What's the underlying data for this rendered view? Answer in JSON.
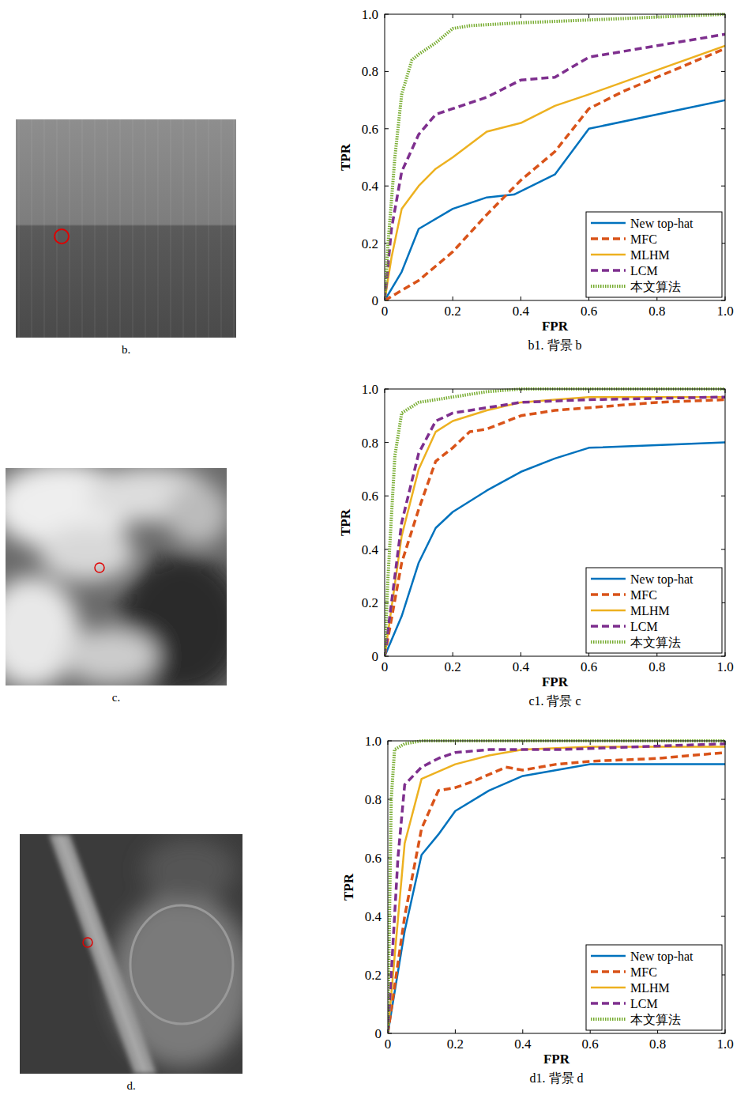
{
  "images": [
    {
      "caption": "b."
    },
    {
      "caption": "c."
    },
    {
      "caption": "d."
    }
  ],
  "chart_data": [
    {
      "type": "line",
      "title": "b1. 背景 b",
      "xlabel": "FPR",
      "ylabel": "TPR",
      "xlim": [
        0,
        1
      ],
      "ylim": [
        0,
        1
      ],
      "xticks": [
        0,
        0.2,
        0.4,
        0.6,
        0.8,
        {
          "value": 1,
          "label": "1.0"
        }
      ],
      "yticks": [
        0,
        0.2,
        0.4,
        0.6,
        0.8,
        {
          "value": 1,
          "label": "1.0"
        }
      ],
      "grid": false,
      "legend": "lower right",
      "series": [
        {
          "name": "New top-hat",
          "color": "#0072bd",
          "line_style": "solid",
          "x": [
            0,
            0.05,
            0.1,
            0.2,
            0.3,
            0.38,
            0.5,
            0.6,
            1.0
          ],
          "values": [
            0,
            0.1,
            0.25,
            0.32,
            0.36,
            0.37,
            0.44,
            0.6,
            0.7
          ]
        },
        {
          "name": "MFC",
          "color": "#d95319",
          "line_style": "dashed",
          "x": [
            0,
            0.1,
            0.2,
            0.3,
            0.4,
            0.5,
            0.6,
            0.7,
            1.0
          ],
          "values": [
            0,
            0.07,
            0.17,
            0.3,
            0.42,
            0.52,
            0.67,
            0.73,
            0.88
          ]
        },
        {
          "name": "MLHM",
          "color": "#edb120",
          "line_style": "solid",
          "x": [
            0,
            0.02,
            0.05,
            0.1,
            0.15,
            0.2,
            0.3,
            0.4,
            0.5,
            0.6,
            1.0
          ],
          "values": [
            0,
            0.15,
            0.32,
            0.4,
            0.46,
            0.5,
            0.59,
            0.62,
            0.68,
            0.72,
            0.89
          ]
        },
        {
          "name": "LCM",
          "color": "#7e2f8e",
          "line_style": "dashed",
          "x": [
            0,
            0.02,
            0.05,
            0.1,
            0.15,
            0.2,
            0.3,
            0.4,
            0.5,
            0.6,
            0.8,
            1.0
          ],
          "values": [
            0,
            0.25,
            0.45,
            0.58,
            0.65,
            0.67,
            0.71,
            0.77,
            0.78,
            0.85,
            0.89,
            0.93
          ]
        },
        {
          "name": "本文算法",
          "color": "#77ac30",
          "line_style": "dotted",
          "x": [
            0,
            0.01,
            0.03,
            0.05,
            0.08,
            0.1,
            0.15,
            0.2,
            0.25,
            0.4,
            0.6,
            0.8,
            1.0
          ],
          "values": [
            0,
            0.2,
            0.5,
            0.72,
            0.84,
            0.86,
            0.9,
            0.95,
            0.96,
            0.97,
            0.98,
            0.99,
            1.0
          ]
        }
      ]
    },
    {
      "type": "line",
      "title": "c1. 背景 c",
      "xlabel": "FPR",
      "ylabel": "TPR",
      "xlim": [
        0,
        1
      ],
      "ylim": [
        0,
        1
      ],
      "xticks": [
        0,
        0.2,
        0.4,
        0.6,
        0.8,
        {
          "value": 1,
          "label": "1.0"
        }
      ],
      "yticks": [
        0,
        0.2,
        0.4,
        0.6,
        0.8,
        {
          "value": 1,
          "label": "1.0"
        }
      ],
      "grid": false,
      "legend": "lower right",
      "series": [
        {
          "name": "New top-hat",
          "color": "#0072bd",
          "line_style": "solid",
          "x": [
            0,
            0.05,
            0.1,
            0.15,
            0.2,
            0.3,
            0.4,
            0.5,
            0.6,
            0.8,
            1.0
          ],
          "values": [
            0,
            0.15,
            0.35,
            0.48,
            0.54,
            0.62,
            0.69,
            0.74,
            0.78,
            0.79,
            0.8
          ]
        },
        {
          "name": "MFC",
          "color": "#d95319",
          "line_style": "dashed",
          "x": [
            0,
            0.05,
            0.1,
            0.15,
            0.2,
            0.25,
            0.3,
            0.4,
            0.5,
            0.6,
            0.8,
            1.0
          ],
          "values": [
            0,
            0.35,
            0.55,
            0.73,
            0.78,
            0.84,
            0.85,
            0.9,
            0.92,
            0.93,
            0.95,
            0.96
          ]
        },
        {
          "name": "MLHM",
          "color": "#edb120",
          "line_style": "solid",
          "x": [
            0,
            0.05,
            0.1,
            0.15,
            0.2,
            0.3,
            0.4,
            0.5,
            0.6,
            1.0
          ],
          "values": [
            0,
            0.45,
            0.7,
            0.84,
            0.88,
            0.92,
            0.95,
            0.96,
            0.97,
            0.97
          ]
        },
        {
          "name": "LCM",
          "color": "#7e2f8e",
          "line_style": "dashed",
          "x": [
            0,
            0.05,
            0.1,
            0.15,
            0.2,
            0.3,
            0.4,
            0.6,
            1.0
          ],
          "values": [
            0,
            0.5,
            0.76,
            0.88,
            0.91,
            0.93,
            0.95,
            0.96,
            0.97
          ]
        },
        {
          "name": "本文算法",
          "color": "#77ac30",
          "line_style": "dotted",
          "x": [
            0,
            0.01,
            0.03,
            0.05,
            0.1,
            0.2,
            0.3,
            0.4,
            1.0
          ],
          "values": [
            0,
            0.3,
            0.75,
            0.91,
            0.95,
            0.97,
            0.99,
            1.0,
            1.0
          ]
        }
      ]
    },
    {
      "type": "line",
      "title": "d1. 背景 d",
      "xlabel": "FPR",
      "ylabel": "TPR",
      "xlim": [
        0,
        1
      ],
      "ylim": [
        0,
        1
      ],
      "xticks": [
        0,
        0.2,
        0.4,
        0.6,
        0.8,
        {
          "value": 1,
          "label": "1.0"
        }
      ],
      "yticks": [
        0,
        0.2,
        0.4,
        0.6,
        0.8,
        {
          "value": 1,
          "label": "1.0"
        }
      ],
      "grid": false,
      "legend": "lower right",
      "series": [
        {
          "name": "New top-hat",
          "color": "#0072bd",
          "line_style": "solid",
          "x": [
            0,
            0.05,
            0.1,
            0.15,
            0.2,
            0.3,
            0.4,
            0.5,
            0.6,
            1.0
          ],
          "values": [
            0,
            0.35,
            0.61,
            0.68,
            0.76,
            0.83,
            0.88,
            0.9,
            0.92,
            0.92
          ]
        },
        {
          "name": "MFC",
          "color": "#d95319",
          "line_style": "dashed",
          "x": [
            0,
            0.05,
            0.1,
            0.15,
            0.2,
            0.25,
            0.35,
            0.4,
            0.5,
            0.6,
            0.8,
            1.0
          ],
          "values": [
            0,
            0.4,
            0.7,
            0.83,
            0.84,
            0.86,
            0.91,
            0.9,
            0.92,
            0.93,
            0.94,
            0.96
          ]
        },
        {
          "name": "MLHM",
          "color": "#edb120",
          "line_style": "solid",
          "x": [
            0,
            0.05,
            0.1,
            0.2,
            0.3,
            0.4,
            0.6,
            1.0
          ],
          "values": [
            0,
            0.65,
            0.87,
            0.92,
            0.95,
            0.97,
            0.98,
            0.98
          ]
        },
        {
          "name": "LCM",
          "color": "#7e2f8e",
          "line_style": "dashed",
          "x": [
            0,
            0.03,
            0.05,
            0.1,
            0.15,
            0.2,
            0.3,
            0.5,
            1.0
          ],
          "values": [
            0,
            0.6,
            0.85,
            0.91,
            0.94,
            0.96,
            0.97,
            0.97,
            0.99
          ]
        },
        {
          "name": "本文算法",
          "color": "#77ac30",
          "line_style": "dotted",
          "x": [
            0,
            0.01,
            0.02,
            0.05,
            0.1,
            1.0
          ],
          "values": [
            0,
            0.8,
            0.97,
            0.99,
            1.0,
            1.0
          ]
        }
      ]
    }
  ]
}
